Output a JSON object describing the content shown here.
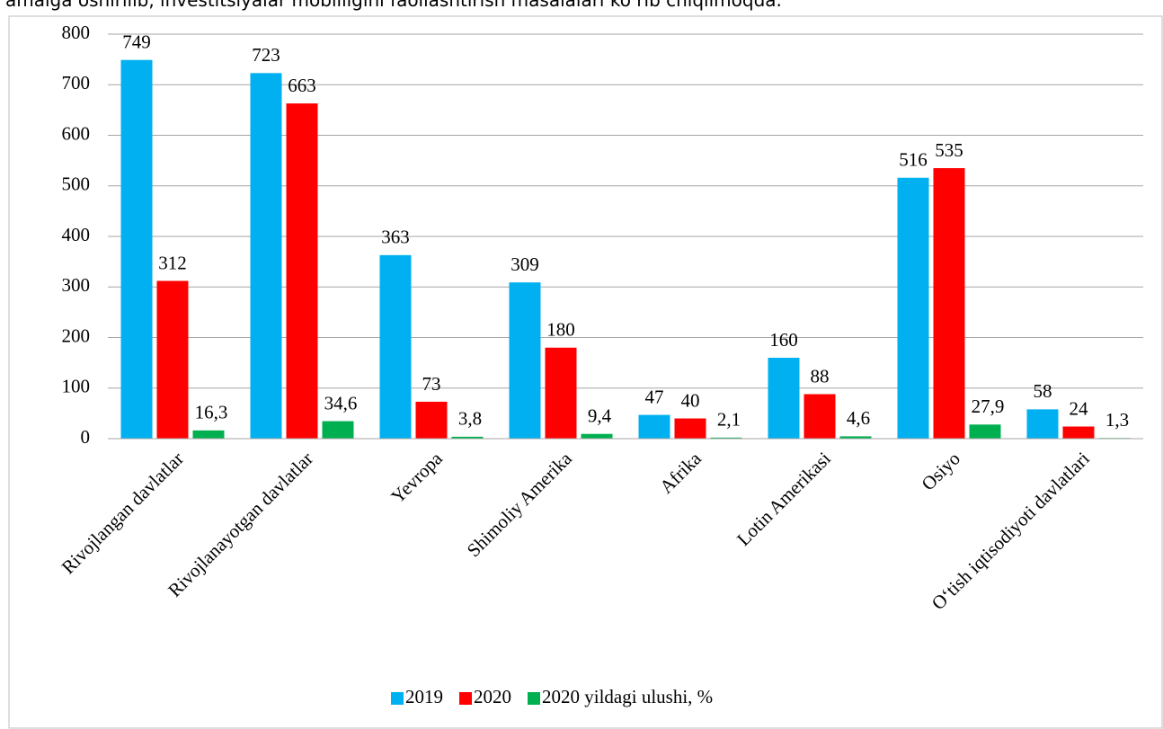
{
  "text_above": "amalga oshirilib, investitsiyalar mobilligini faollashtirish masalalari ko‘rib chiqilmoqda.",
  "chart_data": {
    "type": "bar",
    "categories": [
      "Rivojlangan davlatlar",
      "Rivojlanayotgan davlatlar",
      "Yevropa",
      "Shimoliy Amerika",
      "Afrika",
      "Lotin Amerikasi",
      "Osiyo",
      "O‘tish iqtisodiyoti davlatlari"
    ],
    "series": [
      {
        "name": "2019",
        "color": "#00b0f0",
        "values": [
          749,
          723,
          363,
          309,
          47,
          160,
          516,
          58
        ]
      },
      {
        "name": "2020",
        "color": "#ff0000",
        "values": [
          312,
          663,
          73,
          180,
          40,
          88,
          535,
          24
        ]
      },
      {
        "name": "2020 yildagi ulushi, %",
        "color": "#00b050",
        "values": [
          16.3,
          34.6,
          3.8,
          9.4,
          2.1,
          4.6,
          27.9,
          1.3
        ],
        "value_labels": [
          "16,3",
          "34,6",
          "3,8",
          "9,4",
          "2,1",
          "4,6",
          "27,9",
          "1,3"
        ]
      }
    ],
    "ylim": [
      0,
      800
    ],
    "yticks": [
      0,
      100,
      200,
      300,
      400,
      500,
      600,
      700,
      800
    ],
    "grid": true,
    "legend": "bottom"
  }
}
